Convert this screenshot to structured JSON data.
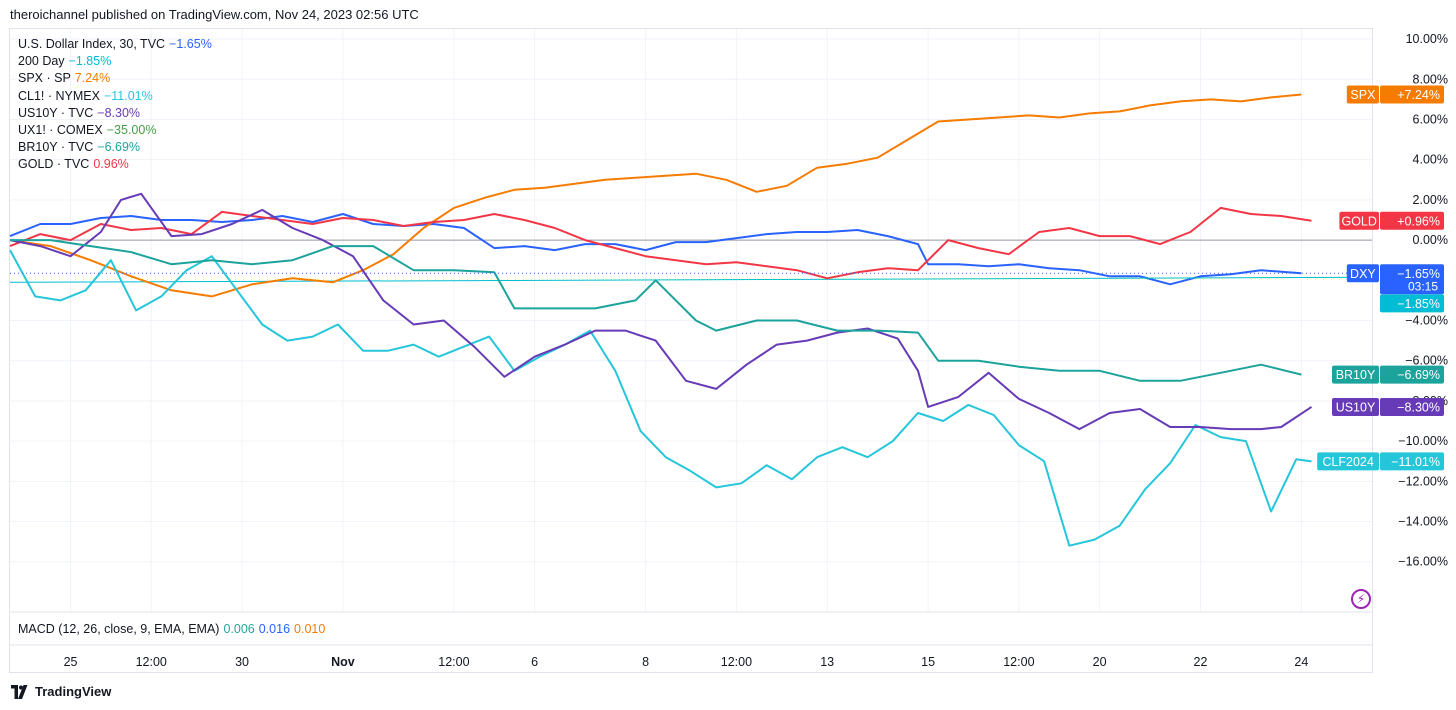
{
  "header": {
    "published": "theroichannel published on TradingView.com, Nov 24, 2023 02:56 UTC"
  },
  "legend": [
    {
      "name": "U.S. Dollar Index, 30, TVC",
      "value": "−1.65%",
      "color": "#2962ff"
    },
    {
      "name": "200 Day",
      "value": "−1.85%",
      "color": "#00bcd4"
    },
    {
      "name": "SPX · SP",
      "value": "7.24%",
      "color": "#f57c00"
    },
    {
      "name": "CL1! · NYMEX",
      "value": "−11.01%",
      "color": "#26c6da"
    },
    {
      "name": "US10Y · TVC",
      "value": "−8.30%",
      "color": "#673ab7"
    },
    {
      "name": "UX1! · COMEX",
      "value": "−35.00%",
      "color": "#43a047"
    },
    {
      "name": "BR10Y · TVC",
      "value": "−6.69%",
      "color": "#1ba39c"
    },
    {
      "name": "GOLD · TVC",
      "value": "0.96%",
      "color": "#f23645"
    }
  ],
  "macd": {
    "label": "MACD (12, 26, close, 9, EMA, EMA)",
    "v1": "0.006",
    "v2": "0.016",
    "v3": "0.010",
    "c1": "#26a69a",
    "c2": "#2962ff",
    "c3": "#f57c00"
  },
  "footer": {
    "brand": "TradingView"
  },
  "chart_data": {
    "type": "line",
    "y_ticks": [
      "10.00%",
      "8.00%",
      "6.00%",
      "4.00%",
      "2.00%",
      "0.00%",
      "−4.00%",
      "−6.00%",
      "−8.00%",
      "−10.00%",
      "−12.00%",
      "−14.00%",
      "−16.00%"
    ],
    "y_tick_values": [
      10,
      8,
      6,
      4,
      2,
      0,
      -4,
      -6,
      -8,
      -10,
      -12,
      -14,
      -16
    ],
    "ylim": [
      -18.5,
      10.5
    ],
    "x_ticks": [
      "25",
      "12:00",
      "30",
      "Nov",
      "12:00",
      "6",
      "8",
      "12:00",
      "13",
      "15",
      "12:00",
      "20",
      "22",
      "24"
    ],
    "x_tick_pos": [
      0.6,
      1.4,
      2.3,
      3.3,
      4.4,
      5.2,
      6.3,
      7.2,
      8.1,
      9.1,
      10.0,
      10.8,
      11.8,
      12.8
    ],
    "xlim": [
      0,
      13.5
    ],
    "series": [
      {
        "name": "DXY",
        "color": "#2962ff",
        "x": [
          0,
          0.3,
          0.6,
          0.9,
          1.2,
          1.5,
          1.8,
          2.1,
          2.4,
          2.7,
          3.0,
          3.3,
          3.6,
          3.9,
          4.2,
          4.5,
          4.8,
          5.1,
          5.4,
          5.7,
          6.0,
          6.3,
          6.6,
          6.9,
          7.2,
          7.5,
          7.8,
          8.1,
          8.4,
          8.7,
          9.0,
          9.1,
          9.4,
          9.7,
          10.0,
          10.3,
          10.6,
          10.9,
          11.2,
          11.5,
          11.8,
          12.1,
          12.4,
          12.8
        ],
        "y": [
          0.2,
          0.8,
          0.8,
          1.1,
          1.2,
          1.0,
          1.0,
          0.9,
          1.0,
          1.2,
          0.9,
          1.3,
          0.8,
          0.7,
          0.8,
          0.6,
          -0.4,
          -0.3,
          -0.5,
          -0.2,
          -0.2,
          -0.5,
          -0.1,
          -0.1,
          0.1,
          0.3,
          0.4,
          0.4,
          0.5,
          0.2,
          -0.2,
          -1.2,
          -1.2,
          -1.3,
          -1.2,
          -1.4,
          -1.5,
          -1.8,
          -1.8,
          -2.2,
          -1.8,
          -1.7,
          -1.5,
          -1.65
        ]
      },
      {
        "name": "200 Day",
        "color": "#00bcd4",
        "x": [
          0,
          13.5
        ],
        "y": [
          -2.1,
          -1.85
        ]
      },
      {
        "name": "SPX",
        "color": "#f57c00",
        "x": [
          0,
          0.4,
          0.8,
          1.2,
          1.6,
          2.0,
          2.4,
          2.8,
          3.2,
          3.5,
          3.8,
          4.1,
          4.4,
          4.7,
          5.0,
          5.3,
          5.6,
          5.9,
          6.2,
          6.5,
          6.8,
          7.1,
          7.4,
          7.7,
          8.0,
          8.3,
          8.6,
          8.9,
          9.2,
          9.5,
          9.8,
          10.1,
          10.4,
          10.7,
          11.0,
          11.3,
          11.6,
          11.9,
          12.2,
          12.5,
          12.8
        ],
        "y": [
          0,
          -0.3,
          -1.0,
          -1.8,
          -2.5,
          -2.8,
          -2.2,
          -1.9,
          -2.1,
          -1.5,
          -0.7,
          0.6,
          1.6,
          2.1,
          2.5,
          2.6,
          2.8,
          3.0,
          3.1,
          3.2,
          3.3,
          3.0,
          2.4,
          2.7,
          3.6,
          3.8,
          4.1,
          5.0,
          5.9,
          6.0,
          6.1,
          6.2,
          6.1,
          6.3,
          6.4,
          6.7,
          6.9,
          7.0,
          6.9,
          7.1,
          7.24
        ]
      },
      {
        "name": "GOLD",
        "color": "#f23645",
        "x": [
          0,
          0.3,
          0.6,
          0.9,
          1.2,
          1.5,
          1.8,
          2.1,
          2.4,
          2.7,
          3.0,
          3.3,
          3.6,
          3.9,
          4.2,
          4.5,
          4.8,
          5.1,
          5.4,
          5.7,
          6.0,
          6.3,
          6.6,
          6.9,
          7.2,
          7.5,
          7.8,
          8.1,
          8.4,
          8.7,
          9.0,
          9.3,
          9.6,
          9.9,
          10.2,
          10.5,
          10.8,
          11.1,
          11.4,
          11.7,
          12.0,
          12.3,
          12.6,
          12.9
        ],
        "y": [
          -0.3,
          0.3,
          0.0,
          0.8,
          0.5,
          0.6,
          0.3,
          1.4,
          1.2,
          1.0,
          0.8,
          1.1,
          1.0,
          0.7,
          0.9,
          1.0,
          1.3,
          1.0,
          0.6,
          0.0,
          -0.4,
          -0.8,
          -1.0,
          -1.2,
          -1.1,
          -1.3,
          -1.5,
          -1.9,
          -1.6,
          -1.4,
          -1.5,
          0.0,
          -0.4,
          -0.7,
          0.4,
          0.6,
          0.2,
          0.2,
          -0.2,
          0.4,
          1.6,
          1.3,
          1.2,
          0.96
        ]
      },
      {
        "name": "CLF2024",
        "color": "#26c6da",
        "x": [
          0,
          0.25,
          0.5,
          0.75,
          1.0,
          1.25,
          1.5,
          1.75,
          2.0,
          2.25,
          2.5,
          2.75,
          3.0,
          3.25,
          3.5,
          3.75,
          4.0,
          4.25,
          4.5,
          4.75,
          5.0,
          5.25,
          5.5,
          5.75,
          6.0,
          6.25,
          6.5,
          6.75,
          7.0,
          7.25,
          7.5,
          7.75,
          8.0,
          8.25,
          8.5,
          8.75,
          9.0,
          9.25,
          9.5,
          9.75,
          10.0,
          10.25,
          10.5,
          10.75,
          11.0,
          11.25,
          11.5,
          11.75,
          12.0,
          12.25,
          12.5,
          12.75,
          12.9
        ],
        "y": [
          -0.5,
          -2.8,
          -3.0,
          -2.5,
          -1.0,
          -3.5,
          -2.8,
          -1.5,
          -0.8,
          -2.5,
          -4.2,
          -5.0,
          -4.8,
          -4.2,
          -5.5,
          -5.5,
          -5.2,
          -5.8,
          -5.3,
          -4.8,
          -6.5,
          -5.8,
          -5.2,
          -4.5,
          -6.5,
          -9.5,
          -10.8,
          -11.5,
          -12.3,
          -12.1,
          -11.2,
          -11.9,
          -10.8,
          -10.3,
          -10.8,
          -10.0,
          -8.6,
          -9.0,
          -8.2,
          -8.7,
          -10.2,
          -11.0,
          -15.2,
          -14.9,
          -14.2,
          -12.4,
          -11.1,
          -9.2,
          -9.8,
          -10.0,
          -13.5,
          -10.9,
          -11.01
        ]
      },
      {
        "name": "US10Y",
        "color": "#673ab7",
        "x": [
          0,
          0.3,
          0.6,
          0.9,
          1.1,
          1.3,
          1.6,
          1.9,
          2.2,
          2.5,
          2.8,
          3.1,
          3.4,
          3.7,
          4.0,
          4.3,
          4.6,
          4.9,
          5.2,
          5.5,
          5.8,
          6.1,
          6.4,
          6.7,
          7.0,
          7.3,
          7.6,
          7.9,
          8.2,
          8.5,
          8.8,
          9.0,
          9.1,
          9.4,
          9.7,
          10.0,
          10.3,
          10.6,
          10.9,
          11.2,
          11.5,
          11.8,
          12.1,
          12.4,
          12.6,
          12.9
        ],
        "y": [
          0.0,
          -0.3,
          -0.8,
          0.4,
          2.0,
          2.3,
          0.2,
          0.3,
          0.8,
          1.5,
          0.6,
          0.0,
          -0.8,
          -3.0,
          -4.2,
          -4.0,
          -5.3,
          -6.8,
          -5.8,
          -5.2,
          -4.5,
          -4.5,
          -5.0,
          -7.0,
          -7.4,
          -6.2,
          -5.2,
          -5.0,
          -4.6,
          -4.4,
          -4.9,
          -6.5,
          -8.3,
          -7.8,
          -6.6,
          -7.9,
          -8.6,
          -9.4,
          -8.6,
          -8.4,
          -9.3,
          -9.3,
          -9.4,
          -9.4,
          -9.3,
          -8.3
        ]
      },
      {
        "name": "BR10Y",
        "color": "#1ba39c",
        "x": [
          0,
          0.4,
          0.8,
          1.2,
          1.6,
          2.0,
          2.4,
          2.8,
          3.2,
          3.6,
          4.0,
          4.4,
          4.8,
          5.0,
          5.4,
          5.8,
          6.2,
          6.4,
          6.8,
          7.0,
          7.4,
          7.8,
          8.2,
          8.6,
          9.0,
          9.2,
          9.6,
          10.0,
          10.4,
          10.8,
          11.2,
          11.6,
          12.0,
          12.4,
          12.8
        ],
        "y": [
          0.0,
          0.0,
          -0.3,
          -0.6,
          -1.2,
          -1.0,
          -1.2,
          -1.0,
          -0.3,
          -0.3,
          -1.5,
          -1.5,
          -1.6,
          -3.4,
          -3.4,
          -3.4,
          -3.0,
          -2.0,
          -4.0,
          -4.5,
          -4.0,
          -4.0,
          -4.5,
          -4.5,
          -4.6,
          -6.0,
          -6.0,
          -6.3,
          -6.5,
          -6.5,
          -7.0,
          -7.0,
          -6.6,
          -6.2,
          -6.69
        ]
      }
    ],
    "tags": [
      {
        "name": "SPX",
        "value": "+7.24%",
        "color": "#f57c00",
        "y": 7.24
      },
      {
        "name": "GOLD",
        "value": "+0.96%",
        "color": "#f23645",
        "y": 0.96
      },
      {
        "name": "DXY",
        "value": "−1.65%",
        "sub": "03:15",
        "color": "#2962ff",
        "y": -1.65
      },
      {
        "name": "",
        "value": "−1.85%",
        "color": "#00bcd4",
        "y": -3.15
      },
      {
        "name": "BR10Y",
        "value": "−6.69%",
        "color": "#1ba39c",
        "y": -6.69
      },
      {
        "name": "US10Y",
        "value": "−8.30%",
        "color": "#673ab7",
        "y": -8.3
      },
      {
        "name": "CLF2024",
        "value": "−11.01%",
        "color": "#26c6da",
        "y": -11.01
      }
    ],
    "x_axis_label": "",
    "y_axis_label": "",
    "grid": true
  }
}
